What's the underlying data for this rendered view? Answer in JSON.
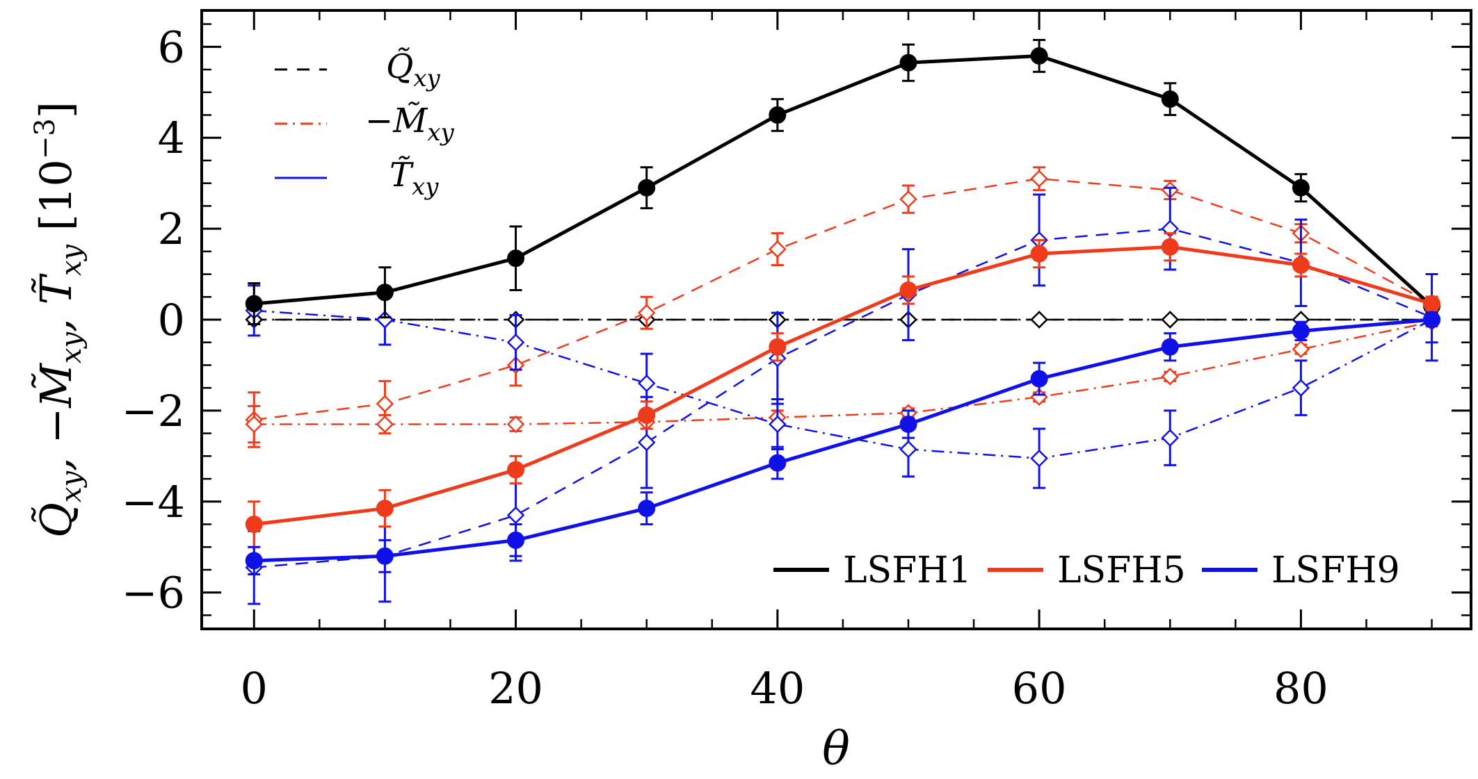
{
  "chart_data": {
    "type": "line",
    "xlabel": "θ",
    "ylabel_parts": [
      "Q̃",
      "xy",
      ", ",
      "−M̃",
      "xy",
      ", ",
      "T̃",
      "xy",
      "  [10",
      "−3",
      "]"
    ],
    "ylabel_unit": "[10−3]",
    "xlim": [
      -4,
      93
    ],
    "ylim": [
      -6.8,
      6.8
    ],
    "x_ticks": [
      0,
      20,
      40,
      60,
      80
    ],
    "y_ticks": [
      -6,
      -4,
      -2,
      0,
      2,
      4,
      6
    ],
    "x_tick_labels": [
      "0",
      "20",
      "40",
      "60",
      "80"
    ],
    "y_tick_labels": [
      "−6",
      "−4",
      "−2",
      "0",
      "2",
      "4",
      "6"
    ],
    "x": [
      0,
      10,
      20,
      30,
      40,
      50,
      60,
      70,
      80,
      90
    ],
    "colors": {
      "LSFH1": "#000000",
      "LSFH5": "#ee3b1b",
      "LSFH9": "#1010e8"
    },
    "style_legend": [
      {
        "label": "Q̃",
        "sub": "xy",
        "style": "dashed",
        "color": "#000000"
      },
      {
        "label": "−M̃",
        "sub": "xy",
        "style": "dashdot",
        "color": "#ee3b1b"
      },
      {
        "label": "T̃",
        "sub": "xy",
        "style": "solid",
        "color": "#1010e8"
      }
    ],
    "model_legend": [
      "LSFH1",
      "LSFH5",
      "LSFH9"
    ],
    "series": [
      {
        "name": "LSFH1",
        "quantity": "T",
        "style": "solid",
        "marker": "filled-circle",
        "values": [
          0.35,
          0.6,
          1.35,
          2.9,
          4.5,
          5.65,
          5.8,
          4.85,
          2.9,
          0.3
        ],
        "errors": [
          0.45,
          0.55,
          0.7,
          0.45,
          0.35,
          0.4,
          0.35,
          0.35,
          0.3,
          0.15
        ]
      },
      {
        "name": "LSFH1",
        "quantity": "Q",
        "style": "dashed",
        "marker": "open-diamond",
        "values": [
          0,
          0,
          0,
          0,
          0,
          0,
          0,
          0,
          0,
          0
        ],
        "errors": [
          0,
          0,
          0,
          0,
          0,
          0,
          0,
          0,
          0,
          0
        ]
      },
      {
        "name": "LSFH1",
        "quantity": "M",
        "style": "dashdot",
        "marker": "open-diamond",
        "values": [
          0,
          0,
          0,
          0,
          0,
          0,
          0,
          0,
          0,
          0
        ],
        "errors": [
          0,
          0,
          0,
          0,
          0,
          0,
          0,
          0,
          0,
          0
        ]
      },
      {
        "name": "LSFH5",
        "quantity": "T",
        "style": "solid",
        "marker": "filled-circle",
        "values": [
          -4.5,
          -4.15,
          -3.3,
          -2.1,
          -0.6,
          0.65,
          1.45,
          1.6,
          1.2,
          0.35
        ],
        "errors": [
          0.5,
          0.4,
          0.3,
          0.3,
          0.3,
          0.3,
          0.3,
          0.3,
          0.25,
          0.15
        ]
      },
      {
        "name": "LSFH5",
        "quantity": "Q",
        "style": "dashed",
        "marker": "open-diamond",
        "values": [
          -2.2,
          -1.85,
          -1.0,
          0.15,
          1.55,
          2.65,
          3.1,
          2.85,
          1.9,
          0.35
        ],
        "errors": [
          0.6,
          0.5,
          0.45,
          0.35,
          0.35,
          0.3,
          0.25,
          0.2,
          0.2,
          0.15
        ]
      },
      {
        "name": "LSFH5",
        "quantity": "M",
        "style": "dashdot",
        "marker": "open-diamond",
        "values": [
          -2.3,
          -2.3,
          -2.3,
          -2.25,
          -2.15,
          -2.05,
          -1.7,
          -1.25,
          -0.65,
          -0.05
        ],
        "errors": [
          0.4,
          0.2,
          0.15,
          0.15,
          0.15,
          0.1,
          0.1,
          0.1,
          0.1,
          0.1
        ]
      },
      {
        "name": "LSFH9",
        "quantity": "T",
        "style": "solid",
        "marker": "filled-circle",
        "values": [
          -5.3,
          -5.2,
          -4.85,
          -4.15,
          -3.15,
          -2.3,
          -1.3,
          -0.6,
          -0.25,
          0.0
        ],
        "errors": [
          0.3,
          0.35,
          0.35,
          0.35,
          0.35,
          0.3,
          0.35,
          0.3,
          0.2,
          0.1
        ]
      },
      {
        "name": "LSFH9",
        "quantity": "Q",
        "style": "dashed",
        "marker": "open-diamond",
        "values": [
          -5.45,
          -5.2,
          -4.3,
          -2.7,
          -0.85,
          0.55,
          1.75,
          2.0,
          1.25,
          0.05
        ],
        "errors": [
          0.8,
          1.0,
          1.0,
          1.0,
          1.0,
          1.0,
          1.0,
          0.9,
          0.95,
          0.95
        ]
      },
      {
        "name": "LSFH9",
        "quantity": "M",
        "style": "dashdot",
        "marker": "open-diamond",
        "values": [
          0.2,
          0.0,
          -0.5,
          -1.4,
          -2.3,
          -2.85,
          -3.05,
          -2.6,
          -1.5,
          0.0
        ],
        "errors": [
          0.55,
          0.55,
          0.6,
          0.65,
          0.55,
          0.6,
          0.65,
          0.6,
          0.6,
          0.5
        ]
      }
    ]
  }
}
